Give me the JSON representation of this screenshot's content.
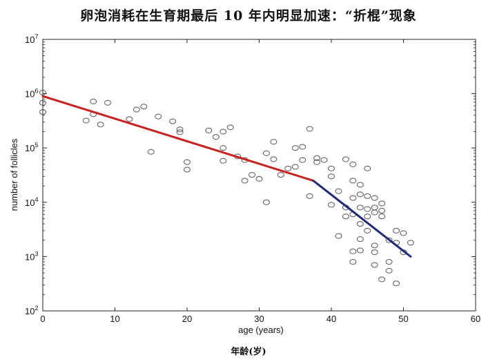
{
  "title": "卵泡消耗在生育期最后 10 年内明显加速：“折棍”现象",
  "bottom_label": "年龄(岁)",
  "chart_data": {
    "type": "scatter",
    "xlabel": "age (years)",
    "ylabel": "number of follicles",
    "xlim": [
      0,
      60
    ],
    "ylim_log10": [
      2,
      7
    ],
    "y_scale": "log",
    "grid": false,
    "x_ticks": [
      0,
      10,
      20,
      30,
      40,
      50,
      60
    ],
    "x_tick_labels": [
      "0",
      "10",
      "20",
      "30",
      "40",
      "50",
      "60"
    ],
    "y_ticks": [
      100,
      1000,
      10000,
      100000,
      1000000,
      10000000
    ],
    "y_tick_labels": [
      {
        "base": "10",
        "exp": "2"
      },
      {
        "base": "10",
        "exp": "3"
      },
      {
        "base": "10",
        "exp": "4"
      },
      {
        "base": "10",
        "exp": "5"
      },
      {
        "base": "10",
        "exp": "6"
      },
      {
        "base": "10",
        "exp": "7"
      }
    ],
    "points": [
      [
        0,
        1050000
      ],
      [
        0,
        680000
      ],
      [
        0,
        460000
      ],
      [
        6,
        320000
      ],
      [
        7,
        720000
      ],
      [
        7,
        420000
      ],
      [
        8,
        270000
      ],
      [
        9,
        680000
      ],
      [
        12,
        340000
      ],
      [
        13,
        510000
      ],
      [
        14,
        580000
      ],
      [
        15,
        85000
      ],
      [
        16,
        380000
      ],
      [
        18,
        310000
      ],
      [
        19,
        220000
      ],
      [
        19,
        195000
      ],
      [
        20,
        55000
      ],
      [
        20,
        40000
      ],
      [
        23,
        210000
      ],
      [
        24,
        160000
      ],
      [
        25,
        100000
      ],
      [
        25,
        200000
      ],
      [
        25,
        58000
      ],
      [
        26,
        240000
      ],
      [
        27,
        70000
      ],
      [
        28,
        25000
      ],
      [
        28,
        60000
      ],
      [
        29,
        32000
      ],
      [
        30,
        27000
      ],
      [
        31,
        80000
      ],
      [
        31,
        10000
      ],
      [
        32,
        130000
      ],
      [
        32,
        62000
      ],
      [
        33,
        32000
      ],
      [
        34,
        42000
      ],
      [
        35,
        100000
      ],
      [
        35,
        45000
      ],
      [
        36,
        105000
      ],
      [
        36,
        60000
      ],
      [
        37,
        225000
      ],
      [
        37,
        13000
      ],
      [
        38,
        55000
      ],
      [
        38,
        65000
      ],
      [
        39,
        60000
      ],
      [
        40,
        42000
      ],
      [
        40,
        30000
      ],
      [
        40,
        9000
      ],
      [
        41,
        2400
      ],
      [
        41,
        16000
      ],
      [
        42,
        5500
      ],
      [
        42,
        62000
      ],
      [
        42,
        8000
      ],
      [
        43,
        50000
      ],
      [
        43,
        25000
      ],
      [
        43,
        12000
      ],
      [
        43,
        6000
      ],
      [
        43,
        1250
      ],
      [
        43,
        800
      ],
      [
        44,
        21000
      ],
      [
        44,
        14000
      ],
      [
        44,
        8000
      ],
      [
        44,
        4000
      ],
      [
        44,
        2100
      ],
      [
        44,
        1300
      ],
      [
        45,
        42000
      ],
      [
        45,
        13000
      ],
      [
        45,
        7500
      ],
      [
        45,
        5500
      ],
      [
        45,
        3000
      ],
      [
        46,
        12000
      ],
      [
        46,
        8000
      ],
      [
        46,
        6500
      ],
      [
        46,
        1600
      ],
      [
        46,
        1200
      ],
      [
        46,
        700
      ],
      [
        47,
        9500
      ],
      [
        47,
        7000
      ],
      [
        47,
        5500
      ],
      [
        47,
        380
      ],
      [
        48,
        2000
      ],
      [
        48,
        800
      ],
      [
        48,
        550
      ],
      [
        49,
        3000
      ],
      [
        49,
        1800
      ],
      [
        49,
        320
      ],
      [
        50,
        2700
      ],
      [
        50,
        1200
      ],
      [
        51,
        1800
      ]
    ],
    "series": [
      {
        "color": "#cc1f1f",
        "x": [
          0,
          37.5
        ],
        "y": [
          900000,
          25000
        ]
      },
      {
        "color": "#1f2a78",
        "x": [
          37.5,
          51
        ],
        "y": [
          25000,
          1000
        ]
      }
    ]
  }
}
